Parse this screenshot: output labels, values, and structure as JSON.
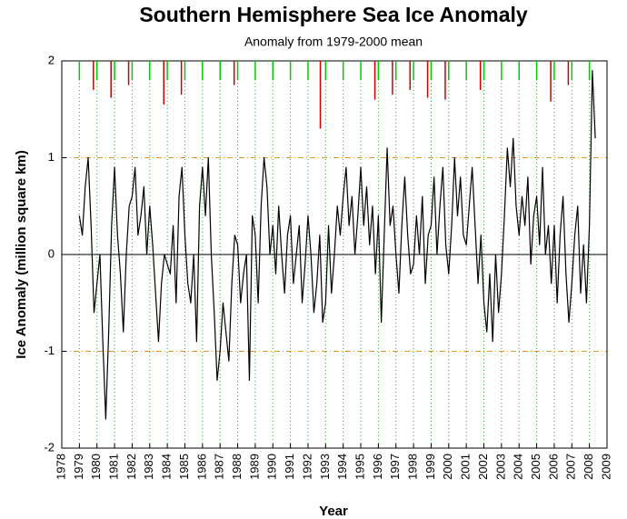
{
  "chart_data": {
    "type": "line",
    "title": "Southern Hemisphere Sea Ice Anomaly",
    "subtitle": "Anomaly from 1979-2000 mean",
    "x_label": "Year",
    "y_label": "Ice Anomaly (million square km)",
    "xlim": [
      1978,
      2009
    ],
    "ylim": [
      -2,
      2
    ],
    "xticks": [
      1978,
      1979,
      1980,
      1981,
      1982,
      1983,
      1984,
      1985,
      1986,
      1987,
      1988,
      1989,
      1990,
      1991,
      1992,
      1993,
      1994,
      1995,
      1996,
      1997,
      1998,
      1999,
      2000,
      2001,
      2002,
      2003,
      2004,
      2005,
      2006,
      2007,
      2008,
      2009
    ],
    "yticks": [
      -2,
      -1,
      0,
      1,
      2
    ],
    "grid": true,
    "series": [
      {
        "color": "#000000",
        "x": [
          1979.0,
          1979.167,
          1979.333,
          1979.5,
          1979.667,
          1979.833,
          1980.0,
          1980.167,
          1980.333,
          1980.5,
          1980.667,
          1980.833,
          1981.0,
          1981.167,
          1981.333,
          1981.5,
          1981.667,
          1981.833,
          1982.0,
          1982.167,
          1982.333,
          1982.5,
          1982.667,
          1982.833,
          1983.0,
          1983.167,
          1983.333,
          1983.5,
          1983.667,
          1983.833,
          1984.0,
          1984.167,
          1984.333,
          1984.5,
          1984.667,
          1984.833,
          1985.0,
          1985.167,
          1985.333,
          1985.5,
          1985.667,
          1985.833,
          1986.0,
          1986.167,
          1986.333,
          1986.5,
          1986.667,
          1986.833,
          1987.0,
          1987.167,
          1987.333,
          1987.5,
          1987.667,
          1987.833,
          1988.0,
          1988.167,
          1988.333,
          1988.5,
          1988.667,
          1988.833,
          1989.0,
          1989.167,
          1989.333,
          1989.5,
          1989.667,
          1989.833,
          1990.0,
          1990.167,
          1990.333,
          1990.5,
          1990.667,
          1990.833,
          1991.0,
          1991.167,
          1991.333,
          1991.5,
          1991.667,
          1991.833,
          1992.0,
          1992.167,
          1992.333,
          1992.5,
          1992.667,
          1992.833,
          1993.0,
          1993.167,
          1993.333,
          1993.5,
          1993.667,
          1993.833,
          1994.0,
          1994.167,
          1994.333,
          1994.5,
          1994.667,
          1994.833,
          1995.0,
          1995.167,
          1995.333,
          1995.5,
          1995.667,
          1995.833,
          1996.0,
          1996.167,
          1996.333,
          1996.5,
          1996.667,
          1996.833,
          1997.0,
          1997.167,
          1997.333,
          1997.5,
          1997.667,
          1997.833,
          1998.0,
          1998.167,
          1998.333,
          1998.5,
          1998.667,
          1998.833,
          1999.0,
          1999.167,
          1999.333,
          1999.5,
          1999.667,
          1999.833,
          2000.0,
          2000.167,
          2000.333,
          2000.5,
          2000.667,
          2000.833,
          2001.0,
          2001.167,
          2001.333,
          2001.5,
          2001.667,
          2001.833,
          2002.0,
          2002.167,
          2002.333,
          2002.5,
          2002.667,
          2002.833,
          2003.0,
          2003.167,
          2003.333,
          2003.5,
          2003.667,
          2003.833,
          2004.0,
          2004.167,
          2004.333,
          2004.5,
          2004.667,
          2004.833,
          2005.0,
          2005.167,
          2005.333,
          2005.5,
          2005.667,
          2005.833,
          2006.0,
          2006.167,
          2006.333,
          2006.5,
          2006.667,
          2006.833,
          2007.0,
          2007.167,
          2007.333,
          2007.5,
          2007.667,
          2007.833,
          2008.0,
          2008.167,
          2008.333
        ],
        "values": [
          0.4,
          0.2,
          0.7,
          1.0,
          0.3,
          -0.6,
          -0.3,
          0.0,
          -0.9,
          -1.7,
          -0.8,
          0.3,
          0.9,
          0.2,
          -0.2,
          -0.8,
          0.0,
          0.5,
          0.6,
          0.9,
          0.2,
          0.4,
          0.7,
          0.0,
          0.5,
          0.1,
          -0.4,
          -0.9,
          -0.3,
          0.0,
          -0.1,
          -0.2,
          0.3,
          -0.5,
          0.6,
          0.9,
          0.2,
          -0.3,
          -0.5,
          0.0,
          -0.9,
          0.5,
          0.9,
          0.4,
          1.0,
          0.0,
          -0.6,
          -1.3,
          -1.0,
          -0.5,
          -0.8,
          -1.1,
          -0.3,
          0.2,
          0.1,
          -0.5,
          -0.2,
          0.0,
          -1.3,
          0.4,
          0.2,
          -0.5,
          0.5,
          1.0,
          0.7,
          0.0,
          0.3,
          -0.2,
          0.5,
          0.0,
          -0.4,
          0.2,
          0.4,
          -0.3,
          0.0,
          0.3,
          -0.5,
          -0.1,
          0.4,
          0.0,
          -0.6,
          -0.3,
          0.2,
          -0.7,
          -0.5,
          0.3,
          -0.4,
          0.0,
          0.5,
          0.2,
          0.6,
          0.9,
          0.3,
          0.6,
          0.0,
          0.4,
          0.9,
          0.3,
          0.7,
          0.1,
          0.5,
          -0.2,
          0.4,
          -0.7,
          0.2,
          1.1,
          0.3,
          0.5,
          0.0,
          -0.4,
          0.3,
          0.8,
          0.2,
          -0.2,
          -0.1,
          0.4,
          0.0,
          0.6,
          -0.3,
          0.2,
          0.3,
          0.8,
          0.0,
          0.5,
          0.9,
          0.1,
          -0.2,
          0.3,
          1.0,
          0.4,
          0.8,
          0.2,
          0.1,
          0.5,
          0.9,
          0.3,
          -0.3,
          0.2,
          -0.5,
          -0.8,
          -0.2,
          -0.9,
          0.0,
          -0.6,
          -0.2,
          0.4,
          1.1,
          0.7,
          1.2,
          0.5,
          0.2,
          0.6,
          0.3,
          0.8,
          -0.1,
          0.4,
          0.6,
          0.1,
          0.9,
          0.0,
          0.3,
          -0.3,
          0.3,
          -0.5,
          0.2,
          0.6,
          -0.2,
          -0.7,
          -0.3,
          0.2,
          0.5,
          -0.4,
          0.1,
          -0.5,
          0.3,
          1.9,
          1.2
        ]
      }
    ],
    "annual_marks": {
      "x": [
        1979.0,
        1980.0,
        1981.0,
        1982.0,
        1983.0,
        1984.0,
        1985.0,
        1986.0,
        1987.0,
        1988.0,
        1989.0,
        1990.0,
        1991.0,
        1992.0,
        1993.0,
        1994.0,
        1995.0,
        1996.0,
        1997.0,
        1998.0,
        1999.0,
        2000.0,
        2001.0,
        2002.0,
        2003.0,
        2004.0,
        2005.0,
        2006.0,
        2007.0,
        2008.0,
        1979.8,
        1980.8,
        1981.8,
        1983.8,
        1984.8,
        1987.8,
        1992.7,
        1995.8,
        1996.8,
        1997.8,
        1998.8,
        1999.8,
        2001.8,
        2005.8,
        2006.8
      ],
      "values": [
        1.8,
        1.8,
        1.8,
        1.8,
        1.8,
        1.8,
        1.8,
        1.8,
        1.8,
        1.8,
        1.8,
        1.8,
        1.8,
        1.8,
        1.8,
        1.8,
        1.8,
        1.8,
        1.8,
        1.8,
        1.8,
        1.8,
        1.8,
        1.8,
        1.8,
        1.8,
        1.8,
        1.8,
        1.8,
        1.8,
        1.7,
        1.62,
        1.75,
        1.55,
        1.65,
        1.75,
        1.3,
        1.6,
        1.65,
        1.7,
        1.62,
        1.6,
        1.7,
        1.58,
        1.75
      ],
      "colors": [
        "#00cc00",
        "#00cc00",
        "#00cc00",
        "#00cc00",
        "#00cc00",
        "#00cc00",
        "#00cc00",
        "#00cc00",
        "#00cc00",
        "#00cc00",
        "#00cc00",
        "#00cc00",
        "#00cc00",
        "#00cc00",
        "#00cc00",
        "#00cc00",
        "#00cc00",
        "#00cc00",
        "#00cc00",
        "#00cc00",
        "#00cc00",
        "#00cc00",
        "#00cc00",
        "#00cc00",
        "#00cc00",
        "#00cc00",
        "#00cc00",
        "#00cc00",
        "#00cc00",
        "#00cc00",
        "#cc0000",
        "#cc0000",
        "#cc0000",
        "#cc0000",
        "#cc0000",
        "#cc0000",
        "#cc0000",
        "#cc0000",
        "#cc0000",
        "#cc0000",
        "#cc0000",
        "#cc0000",
        "#cc0000",
        "#cc0000",
        "#cc0000"
      ]
    }
  }
}
